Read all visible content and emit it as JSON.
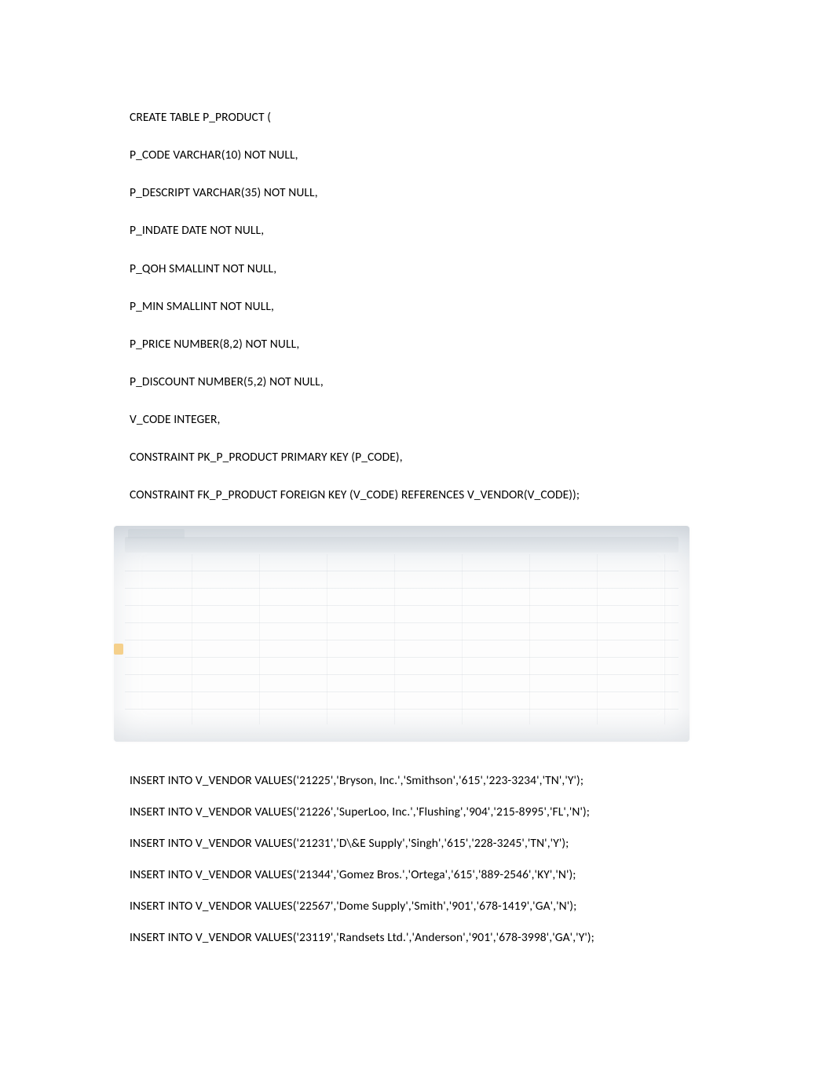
{
  "create_table": {
    "lines": [
      "CREATE TABLE P_PRODUCT (",
      "P_CODE VARCHAR(10) NOT NULL,",
      "P_DESCRIPT VARCHAR(35) NOT NULL,",
      "P_INDATE DATE NOT NULL,",
      "P_QOH SMALLINT NOT NULL,",
      "P_MIN SMALLINT NOT NULL,",
      "P_PRICE NUMBER(8,2) NOT NULL,",
      "P_DISCOUNT NUMBER(5,2) NOT NULL,",
      "V_CODE INTEGER,",
      "CONSTRAINT PK_P_PRODUCT PRIMARY KEY (P_CODE),",
      "CONSTRAINT FK_P_PRODUCT FOREIGN KEY (V_CODE) REFERENCES V_VENDOR(V_CODE));"
    ]
  },
  "inserts": {
    "lines": [
      "INSERT INTO V_VENDOR VALUES('21225','Bryson, Inc.','Smithson','615','223-3234','TN','Y');",
      "INSERT INTO V_VENDOR VALUES('21226','SuperLoo, Inc.','Flushing','904','215-8995','FL','N');",
      "INSERT INTO V_VENDOR VALUES('21231','D\\&E Supply','Singh','615','228-3245','TN','Y');",
      "INSERT INTO V_VENDOR VALUES('21344','Gomez Bros.','Ortega','615','889-2546','KY','N');",
      "INSERT INTO V_VENDOR VALUES('22567','Dome Supply','Smith','901','678-1419','GA','N');",
      "INSERT INTO V_VENDOR VALUES('23119','Randsets Ltd.','Anderson','901','678-3998','GA','Y');"
    ]
  }
}
